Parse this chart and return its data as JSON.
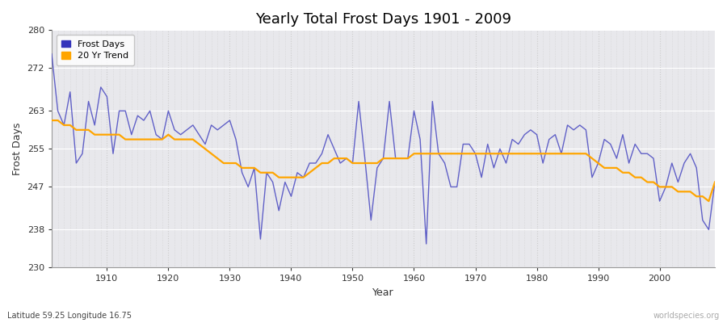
{
  "title": "Yearly Total Frost Days 1901 - 2009",
  "xlabel": "Year",
  "ylabel": "Frost Days",
  "subtitle": "Latitude 59.25 Longitude 16.75",
  "watermark": "worldspecies.org",
  "ylim": [
    230,
    280
  ],
  "yticks": [
    230,
    238,
    247,
    255,
    263,
    272,
    280
  ],
  "xlim": [
    1901,
    2009
  ],
  "frost_days_color": "#3333bb",
  "frost_days_alpha": 0.75,
  "trend_color": "#FFA500",
  "trend_linewidth": 1.6,
  "frost_linewidth": 1.0,
  "background_color": "#e8e8ec",
  "years": [
    1901,
    1902,
    1903,
    1904,
    1905,
    1906,
    1907,
    1908,
    1909,
    1910,
    1911,
    1912,
    1913,
    1914,
    1915,
    1916,
    1917,
    1918,
    1919,
    1920,
    1921,
    1922,
    1923,
    1924,
    1925,
    1926,
    1927,
    1928,
    1929,
    1930,
    1931,
    1932,
    1933,
    1934,
    1935,
    1936,
    1937,
    1938,
    1939,
    1940,
    1941,
    1942,
    1943,
    1944,
    1945,
    1946,
    1947,
    1948,
    1949,
    1950,
    1951,
    1952,
    1953,
    1954,
    1955,
    1956,
    1957,
    1958,
    1959,
    1960,
    1961,
    1962,
    1963,
    1964,
    1965,
    1966,
    1967,
    1968,
    1969,
    1970,
    1971,
    1972,
    1973,
    1974,
    1975,
    1976,
    1977,
    1978,
    1979,
    1980,
    1981,
    1982,
    1983,
    1984,
    1985,
    1986,
    1987,
    1988,
    1989,
    1990,
    1991,
    1992,
    1993,
    1994,
    1995,
    1996,
    1997,
    1998,
    1999,
    2000,
    2001,
    2002,
    2003,
    2004,
    2005,
    2006,
    2007,
    2008,
    2009
  ],
  "frost_values": [
    275,
    263,
    260,
    267,
    252,
    254,
    265,
    260,
    268,
    266,
    254,
    263,
    263,
    258,
    262,
    261,
    263,
    258,
    257,
    263,
    259,
    258,
    259,
    260,
    258,
    256,
    260,
    259,
    260,
    261,
    257,
    250,
    247,
    251,
    236,
    250,
    248,
    242,
    248,
    245,
    250,
    249,
    252,
    252,
    254,
    258,
    255,
    252,
    253,
    252,
    265,
    253,
    240,
    251,
    253,
    265,
    253,
    253,
    253,
    263,
    257,
    235,
    265,
    254,
    252,
    247,
    247,
    256,
    256,
    254,
    249,
    256,
    251,
    255,
    252,
    257,
    256,
    258,
    259,
    258,
    252,
    257,
    258,
    254,
    260,
    259,
    260,
    259,
    249,
    252,
    257,
    256,
    253,
    258,
    252,
    256,
    254,
    254,
    253,
    244,
    247,
    252,
    248,
    252,
    254,
    251,
    240,
    238,
    248
  ],
  "trend_values": [
    261,
    261,
    260,
    260,
    259,
    259,
    259,
    258,
    258,
    258,
    258,
    258,
    257,
    257,
    257,
    257,
    257,
    257,
    257,
    258,
    257,
    257,
    257,
    257,
    256,
    255,
    254,
    253,
    252,
    252,
    252,
    251,
    251,
    251,
    250,
    250,
    250,
    249,
    249,
    249,
    249,
    249,
    250,
    251,
    252,
    252,
    253,
    253,
    253,
    252,
    252,
    252,
    252,
    252,
    253,
    253,
    253,
    253,
    253,
    254,
    254,
    254,
    254,
    254,
    254,
    254,
    254,
    254,
    254,
    254,
    254,
    254,
    254,
    254,
    254,
    254,
    254,
    254,
    254,
    254,
    254,
    254,
    254,
    254,
    254,
    254,
    254,
    254,
    253,
    252,
    251,
    251,
    251,
    250,
    250,
    249,
    249,
    248,
    248,
    247,
    247,
    247,
    246,
    246,
    246,
    245,
    245,
    244,
    248
  ]
}
